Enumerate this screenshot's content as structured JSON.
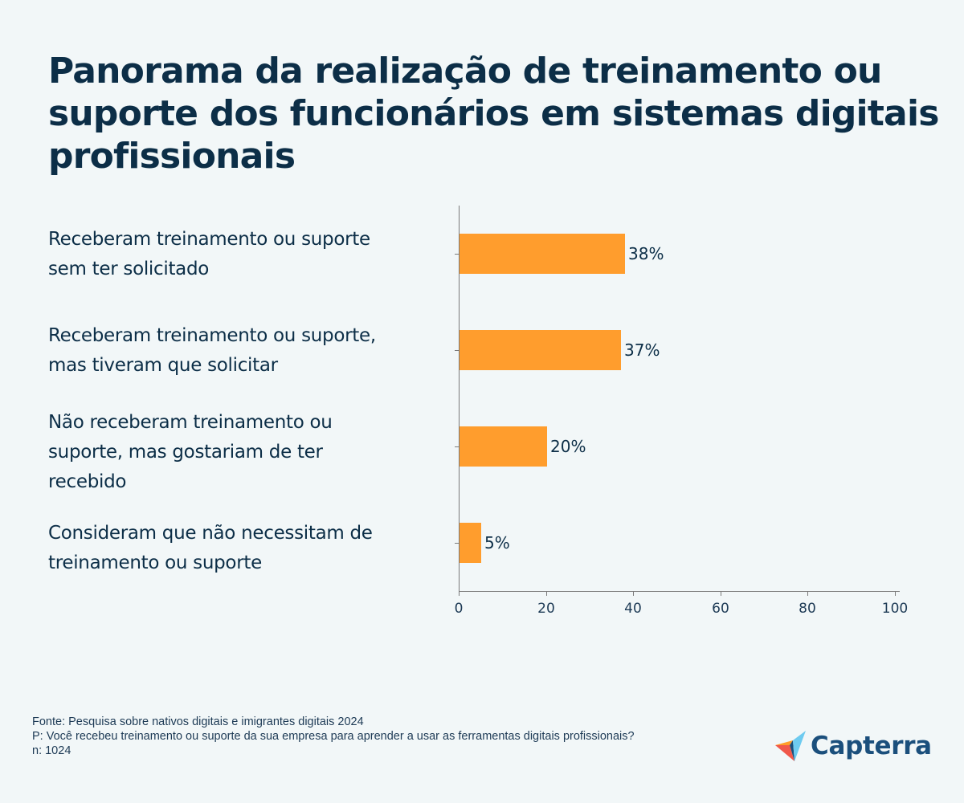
{
  "title": "Panorama da realização de treinamento ou suporte dos funcionários em sistemas digitais profissionais",
  "colors": {
    "background": "#f2f7f8",
    "bar": "#ff9d2d",
    "text": "#0c2e47",
    "axis": "#7a7a7a"
  },
  "chart_data": {
    "type": "bar",
    "orientation": "horizontal",
    "title": "Panorama da realização de treinamento ou suporte dos funcionários em sistemas digitais profissionais",
    "categories": [
      "Receberam treinamento ou suporte sem ter solicitado",
      "Receberam treinamento ou suporte, mas tiveram que solicitar",
      "Não receberam treinamento ou suporte, mas gostariam de ter recebido",
      "Consideram que não necessitam de treinamento ou suporte"
    ],
    "values": [
      38,
      37,
      20,
      5
    ],
    "value_labels": [
      "38%",
      "37%",
      "20%",
      "5%"
    ],
    "xlabel": "",
    "ylabel": "",
    "xlim": [
      0,
      100
    ],
    "xticks": [
      "0",
      "20",
      "40",
      "60",
      "80",
      "100"
    ],
    "grid": false,
    "legend": null
  },
  "footer": {
    "source": "Fonte: Pesquisa sobre nativos digitais e imigrantes digitais 2024",
    "question": "P: Você recebeu treinamento ou suporte da sua empresa para aprender a usar as ferramentas digitais profissionais?",
    "n": "n: 1024"
  },
  "logo": {
    "text": "Capterra",
    "icon": "capterra-arrow-icon"
  }
}
